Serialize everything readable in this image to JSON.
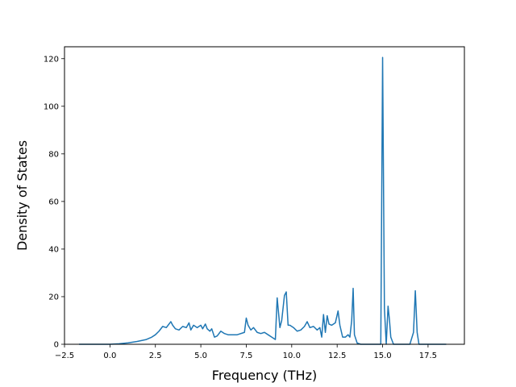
{
  "chart_data": {
    "type": "line",
    "title": "",
    "xlabel": "Frequency (THz)",
    "ylabel": "Density of States",
    "xlim": [
      -2.5,
      19.5
    ],
    "ylim": [
      0,
      125
    ],
    "grid": false,
    "line_color": "#1f77b4",
    "x_ticks": [
      -2.5,
      0.0,
      2.5,
      5.0,
      7.5,
      10.0,
      12.5,
      15.0,
      17.5
    ],
    "x_tick_labels": [
      "−2.5",
      "0.0",
      "2.5",
      "5.0",
      "7.5",
      "10.0",
      "12.5",
      "15.0",
      "17.5"
    ],
    "y_ticks": [
      0,
      20,
      40,
      60,
      80,
      100,
      120
    ],
    "y_tick_labels": [
      "0",
      "20",
      "40",
      "60",
      "80",
      "100",
      "120"
    ],
    "series": [
      {
        "x": [
          -1.7,
          0.0,
          0.5,
          1.0,
          1.5,
          2.0,
          2.3,
          2.5,
          2.7,
          2.9,
          3.1,
          3.2,
          3.35,
          3.45,
          3.6,
          3.8,
          4.0,
          4.2,
          4.35,
          4.45,
          4.6,
          4.8,
          5.0,
          5.1,
          5.25,
          5.35,
          5.5,
          5.6,
          5.75,
          5.9,
          6.1,
          6.3,
          6.5,
          7.0,
          7.4,
          7.5,
          7.6,
          7.75,
          7.9,
          8.1,
          8.3,
          8.5,
          8.7,
          8.9,
          9.1,
          9.2,
          9.35,
          9.45,
          9.6,
          9.7,
          9.8,
          9.9,
          10.1,
          10.3,
          10.5,
          10.7,
          10.85,
          11.0,
          11.2,
          11.4,
          11.55,
          11.65,
          11.75,
          11.85,
          11.95,
          12.05,
          12.2,
          12.4,
          12.55,
          12.65,
          12.8,
          12.95,
          13.1,
          13.2,
          13.3,
          13.38,
          13.45,
          13.6,
          13.8,
          14.0,
          14.5,
          14.9,
          15.0,
          15.1,
          15.2,
          15.3,
          15.38,
          15.45,
          15.6,
          15.8,
          16.0,
          16.5,
          16.7,
          16.8,
          16.9,
          17.0,
          17.5,
          18.0,
          18.5
        ],
        "y": [
          0,
          0,
          0.2,
          0.6,
          1.2,
          2,
          3,
          4,
          5.5,
          7.5,
          7,
          8,
          9.5,
          8,
          6.5,
          6,
          7.5,
          7,
          9,
          6,
          8,
          7,
          8,
          6.5,
          8.5,
          6.5,
          5.5,
          6.5,
          3,
          3.5,
          5.5,
          4.5,
          4,
          4,
          5,
          11,
          8,
          6,
          7,
          5,
          4.5,
          5,
          4,
          3,
          2,
          19.5,
          7,
          10,
          20.5,
          22,
          8,
          8,
          7,
          5.5,
          6,
          7.5,
          9.5,
          7,
          7.5,
          6,
          7,
          3,
          12.5,
          5,
          12,
          8.5,
          8,
          9,
          14,
          8,
          3,
          3,
          4,
          3,
          10,
          23.5,
          4,
          0.5,
          0,
          0,
          0,
          0,
          120.5,
          15,
          0,
          16,
          10,
          3,
          0,
          0,
          0,
          0,
          5,
          22.5,
          5,
          0,
          0,
          0,
          0
        ]
      }
    ]
  }
}
